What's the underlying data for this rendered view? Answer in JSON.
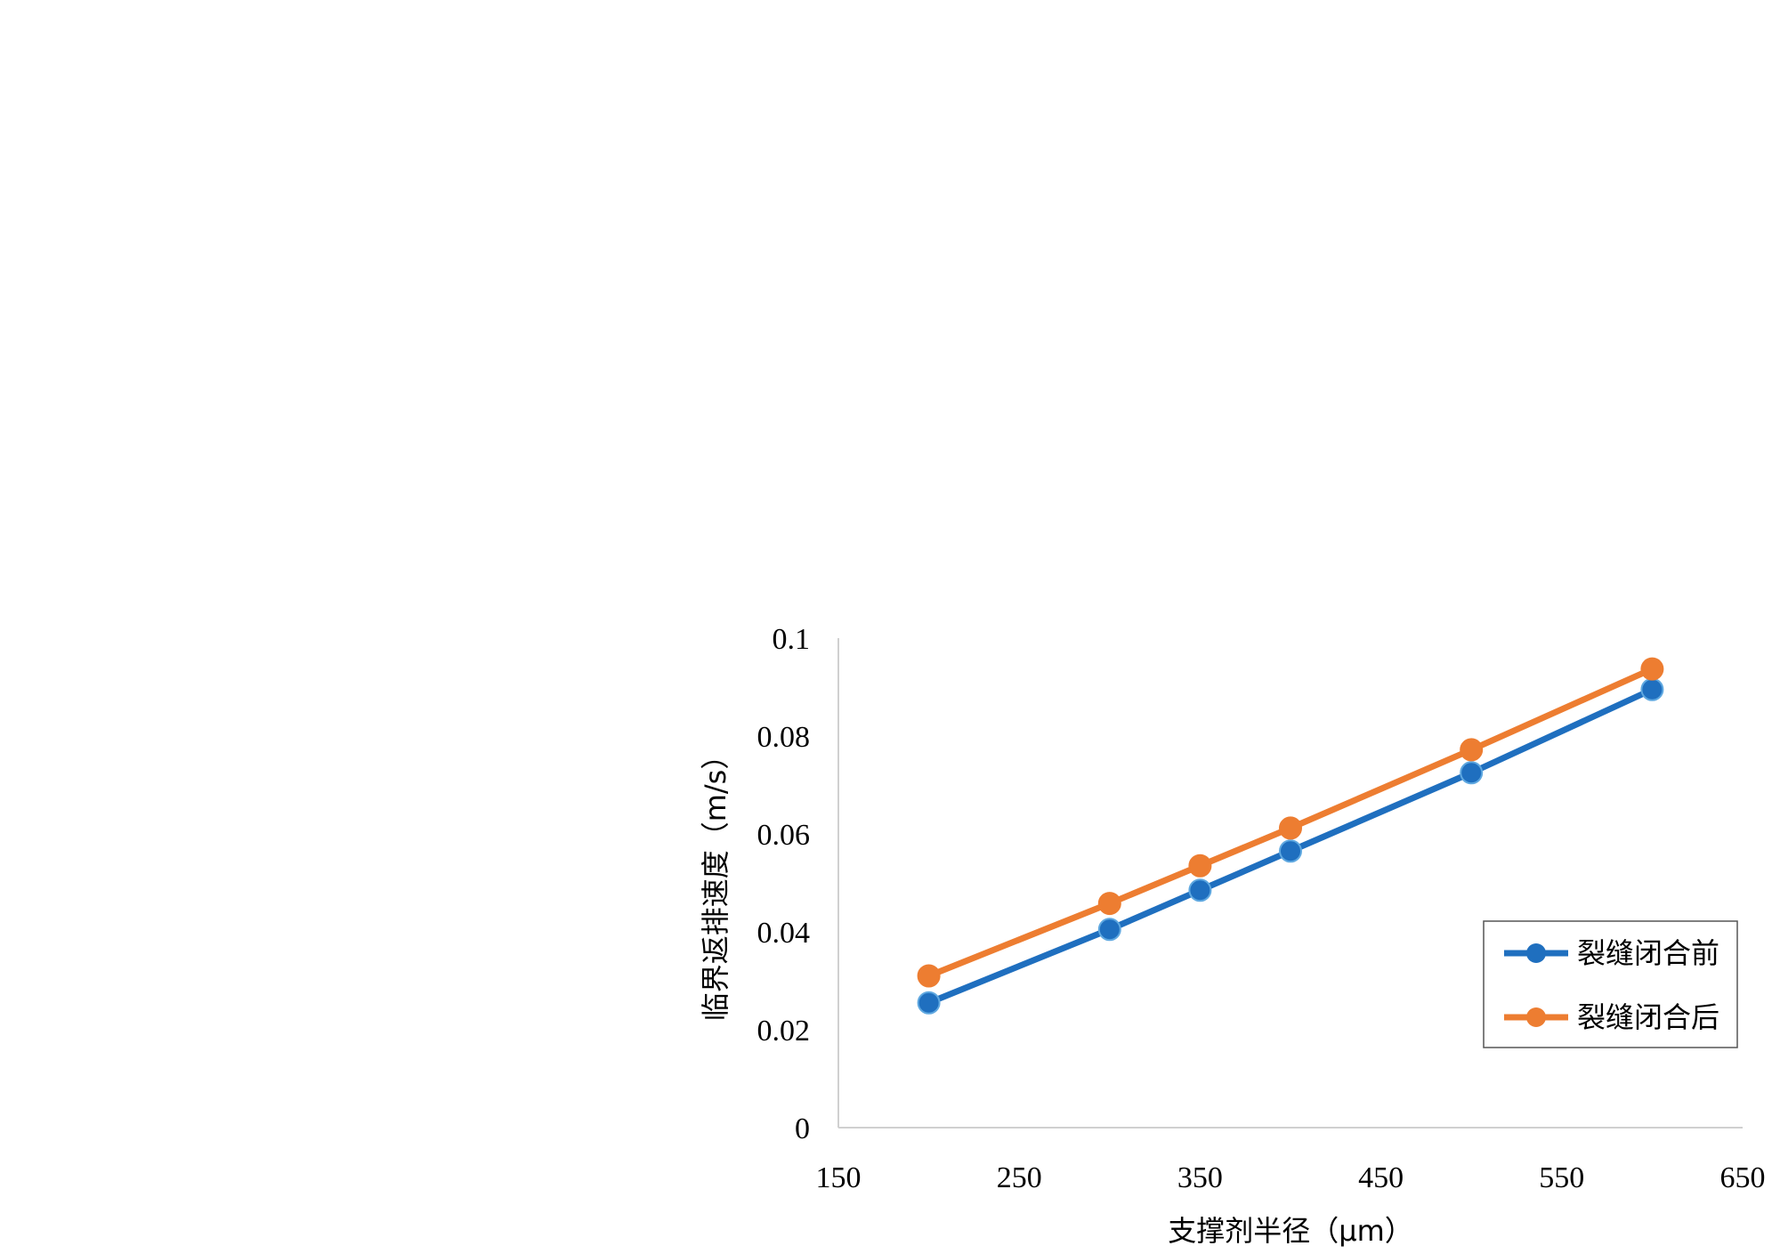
{
  "chart_data": {
    "type": "line",
    "xlabel": "支撑剂半径（μm）",
    "ylabel": "临界返排速度（m/s）",
    "xlim": [
      150,
      650
    ],
    "ylim": [
      0,
      0.1
    ],
    "x_ticks": [
      "150",
      "250",
      "350",
      "450",
      "550",
      "650"
    ],
    "y_ticks": [
      "0",
      "0.02",
      "0.04",
      "0.06",
      "0.08",
      "0.1"
    ],
    "grid": false,
    "legend_position": "bottom-right",
    "series": [
      {
        "name": "裂缝闭合前",
        "color": "#1f6fbf",
        "x": [
          200,
          300,
          350,
          400,
          500,
          600
        ],
        "y": [
          0.0255,
          0.0405,
          0.0485,
          0.0565,
          0.0725,
          0.0895
        ]
      },
      {
        "name": "裂缝闭合后",
        "color": "#ed7d31",
        "x": [
          200,
          300,
          350,
          400,
          500,
          600
        ],
        "y": [
          0.031,
          0.0458,
          0.0535,
          0.0612,
          0.0772,
          0.0937
        ]
      }
    ]
  }
}
